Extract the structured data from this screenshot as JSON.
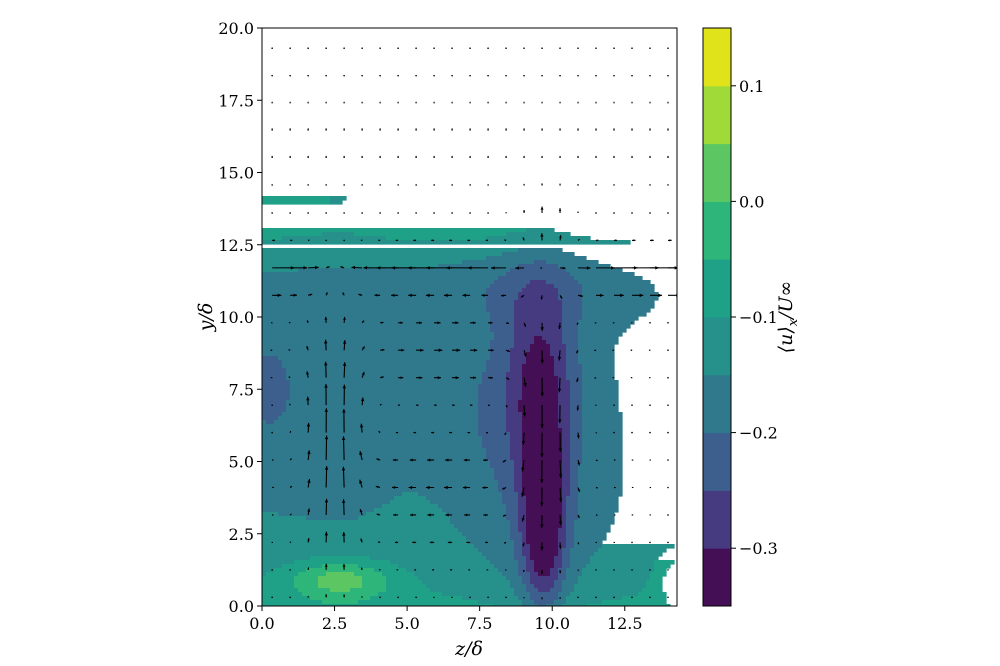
{
  "chart_data": {
    "type": "heatmap",
    "subtype": "filled-contour-with-quiver",
    "title": "",
    "xlabel": "z/δ",
    "ylabel": "y/δ",
    "xlim": [
      0.0,
      14.3
    ],
    "ylim": [
      0.0,
      20.0
    ],
    "x_ticks": [
      "0.0",
      "2.5",
      "5.0",
      "7.5",
      "10.0",
      "12.5"
    ],
    "x_tick_values": [
      0.0,
      2.5,
      5.0,
      7.5,
      10.0,
      12.5
    ],
    "y_ticks": [
      "0.0",
      "2.5",
      "5.0",
      "7.5",
      "10.0",
      "12.5",
      "15.0",
      "17.5",
      "20.0"
    ],
    "y_tick_values": [
      0.0,
      2.5,
      5.0,
      7.5,
      10.0,
      12.5,
      15.0,
      17.5,
      20.0
    ],
    "grid": false,
    "colorbar": {
      "label": "⟨u⟩x/U∞",
      "label_main": "⟨u⟩",
      "label_sub": "x",
      "label_rest": "/U∞",
      "range": [
        -0.35,
        0.15
      ],
      "levels": [
        -0.35,
        -0.3,
        -0.25,
        -0.2,
        -0.15,
        -0.1,
        -0.05,
        0.0,
        0.05,
        0.1,
        0.15
      ],
      "colors": [
        "#440f55",
        "#463a80",
        "#3d5f8e",
        "#30788c",
        "#26908b",
        "#1fa187",
        "#2db57a",
        "#5cc762",
        "#a0da39",
        "#e0e31a"
      ],
      "ticks": [
        "0.1",
        "0.0",
        "−0.1",
        "−0.2",
        "−0.3"
      ],
      "tick_values": [
        0.1,
        0.0,
        -0.1,
        -0.2,
        -0.3
      ]
    },
    "field_features": [
      {
        "kind": "upwelling",
        "z": 9.8,
        "y_center": 5.0,
        "min_value": -0.32
      },
      {
        "kind": "downwelling",
        "z": 2.5,
        "y_center": 1.0,
        "max_value": 0.12
      },
      {
        "kind": "wake-boundary",
        "y": 12.8
      }
    ]
  }
}
